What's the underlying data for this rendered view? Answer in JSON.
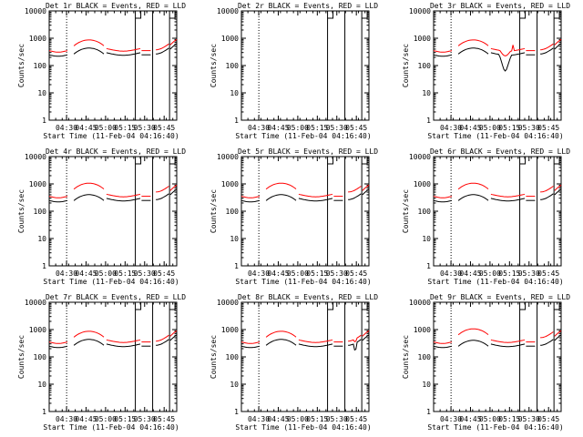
{
  "colors": {
    "events": "#000000",
    "lld": "#ff0000",
    "axis": "#000000"
  },
  "shared": {
    "xlabel": "Start Time (11-Feb-04 04:16:40)",
    "ylabel": "Counts/sec",
    "x_ticks": [
      "04:30",
      "04:45",
      "05:00",
      "05:15",
      "05:30",
      "05:45"
    ],
    "y_ticks": [
      "1",
      "10",
      "100",
      "1000",
      "10000"
    ]
  },
  "chart_data": [
    {
      "type": "line",
      "title": "Det 1r BLACK = Events, RED = LLD",
      "has_data": true,
      "variant": 0,
      "x_tick_values": [
        13.33,
        28.33,
        43.33,
        58.33,
        73.33,
        88.33
      ],
      "xlim": [
        0,
        98
      ],
      "ylim": [
        1,
        10000
      ],
      "yscale": "log",
      "series": [
        {
          "name": "BLACK = Events",
          "color": "#000000"
        },
        {
          "name": "RED = LLD",
          "color": "#ff0000"
        }
      ]
    },
    {
      "type": "line",
      "title": "Det 2r BLACK = Events, RED = LLD",
      "has_data": false,
      "variant": 0,
      "x_tick_values": [
        13.33,
        28.33,
        43.33,
        58.33,
        73.33,
        88.33
      ],
      "xlim": [
        0,
        98
      ],
      "ylim": [
        1,
        10000
      ],
      "yscale": "log",
      "series": []
    },
    {
      "type": "line",
      "title": "Det 3r BLACK = Events, RED = LLD",
      "has_data": true,
      "variant": 3,
      "x_tick_values": [
        13.33,
        28.33,
        43.33,
        58.33,
        73.33,
        88.33
      ],
      "xlim": [
        0,
        98
      ],
      "ylim": [
        1,
        10000
      ],
      "yscale": "log",
      "series": [
        {
          "name": "BLACK = Events",
          "color": "#000000"
        },
        {
          "name": "RED = LLD",
          "color": "#ff0000"
        }
      ]
    },
    {
      "type": "line",
      "title": "Det 4r BLACK = Events, RED = LLD",
      "has_data": true,
      "variant": 1,
      "x_tick_values": [
        13.33,
        28.33,
        43.33,
        58.33,
        73.33,
        88.33
      ],
      "xlim": [
        0,
        98
      ],
      "ylim": [
        1,
        10000
      ],
      "yscale": "log",
      "series": [
        {
          "name": "BLACK = Events",
          "color": "#000000"
        },
        {
          "name": "RED = LLD",
          "color": "#ff0000"
        }
      ]
    },
    {
      "type": "line",
      "title": "Det 5r BLACK = Events, RED = LLD",
      "has_data": true,
      "variant": 1,
      "x_tick_values": [
        13.33,
        28.33,
        43.33,
        58.33,
        73.33,
        88.33
      ],
      "xlim": [
        0,
        98
      ],
      "ylim": [
        1,
        10000
      ],
      "yscale": "log",
      "series": [
        {
          "name": "BLACK = Events",
          "color": "#000000"
        },
        {
          "name": "RED = LLD",
          "color": "#ff0000"
        }
      ]
    },
    {
      "type": "line",
      "title": "Det 6r BLACK = Events, RED = LLD",
      "has_data": true,
      "variant": 1,
      "x_tick_values": [
        13.33,
        28.33,
        43.33,
        58.33,
        73.33,
        88.33
      ],
      "xlim": [
        0,
        98
      ],
      "ylim": [
        1,
        10000
      ],
      "yscale": "log",
      "series": [
        {
          "name": "BLACK = Events",
          "color": "#000000"
        },
        {
          "name": "RED = LLD",
          "color": "#ff0000"
        }
      ]
    },
    {
      "type": "line",
      "title": "Det 7r BLACK = Events, RED = LLD",
      "has_data": true,
      "variant": 0,
      "x_tick_values": [
        13.33,
        28.33,
        43.33,
        58.33,
        73.33,
        88.33
      ],
      "xlim": [
        0,
        98
      ],
      "ylim": [
        1,
        10000
      ],
      "yscale": "log",
      "series": [
        {
          "name": "BLACK = Events",
          "color": "#000000"
        },
        {
          "name": "RED = LLD",
          "color": "#ff0000"
        }
      ]
    },
    {
      "type": "line",
      "title": "Det 8r BLACK = Events, RED = LLD",
      "has_data": true,
      "variant": 2,
      "x_tick_values": [
        13.33,
        28.33,
        43.33,
        58.33,
        73.33,
        88.33
      ],
      "xlim": [
        0,
        98
      ],
      "ylim": [
        1,
        10000
      ],
      "yscale": "log",
      "series": [
        {
          "name": "BLACK = Events",
          "color": "#000000"
        },
        {
          "name": "RED = LLD",
          "color": "#ff0000"
        }
      ]
    },
    {
      "type": "line",
      "title": "Det 9r BLACK = Events, RED = LLD",
      "has_data": true,
      "variant": 1,
      "x_tick_values": [
        13.33,
        28.33,
        43.33,
        58.33,
        73.33,
        88.33
      ],
      "xlim": [
        0,
        98
      ],
      "ylim": [
        1,
        10000
      ],
      "yscale": "log",
      "series": [
        {
          "name": "BLACK = Events",
          "color": "#000000"
        },
        {
          "name": "RED = LLD",
          "color": "#ff0000"
        }
      ]
    }
  ]
}
